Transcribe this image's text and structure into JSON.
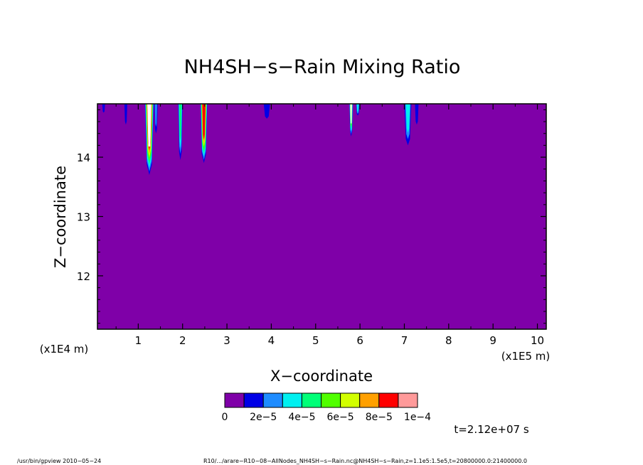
{
  "chart_data": {
    "type": "heatmap",
    "title": "NH4SH−s−Rain Mixing Ratio",
    "xlabel": "X−coordinate",
    "ylabel": "Z−coordinate",
    "x_scale_note": "(x1E5 m)",
    "y_scale_note": "(x1E4 m)",
    "xlim": [
      0.08,
      10.2
    ],
    "ylim": [
      11.1,
      14.9
    ],
    "x_ticks": [
      1,
      2,
      3,
      4,
      5,
      6,
      7,
      8,
      9,
      10
    ],
    "x_tick_labels": [
      "1",
      "2",
      "3",
      "4",
      "5",
      "6",
      "7",
      "8",
      "9",
      "10"
    ],
    "y_ticks": [
      12,
      13,
      14
    ],
    "y_tick_labels": [
      "12",
      "13",
      "14"
    ],
    "background_value": 0,
    "colorbar": {
      "colors": [
        "#7f00a8",
        "#0000e6",
        "#1e8cff",
        "#00f0f0",
        "#00ff78",
        "#50ff00",
        "#d2ff00",
        "#ffa000",
        "#ff0000",
        "#ff9a9a"
      ],
      "labels": [
        "0",
        "2e−5",
        "4e−5",
        "6e−5",
        "8e−5",
        "1e−4"
      ],
      "min": 0,
      "max": 0.0001
    },
    "features": [
      {
        "x": 0.22,
        "z_bottom": 14.75,
        "half_width": 0.02,
        "level": 1
      },
      {
        "x": 0.72,
        "z_bottom": 14.55,
        "half_width": 0.01,
        "level": 1
      },
      {
        "x": 1.25,
        "z_bottom": 13.7,
        "half_width": 0.1,
        "level": 9,
        "white_core": true
      },
      {
        "x": 1.4,
        "z_bottom": 14.4,
        "half_width": 0.04,
        "level": 2
      },
      {
        "x": 1.95,
        "z_bottom": 13.95,
        "half_width": 0.05,
        "level": 4
      },
      {
        "x": 2.48,
        "z_bottom": 13.9,
        "half_width": 0.08,
        "level": 8
      },
      {
        "x": 3.9,
        "z_bottom": 14.65,
        "half_width": 0.07,
        "level": 1
      },
      {
        "x": 5.8,
        "z_bottom": 14.35,
        "half_width": 0.04,
        "level": 6,
        "white_core": true
      },
      {
        "x": 5.95,
        "z_bottom": 14.7,
        "half_width": 0.04,
        "level": 3
      },
      {
        "x": 7.08,
        "z_bottom": 14.2,
        "half_width": 0.08,
        "level": 3
      },
      {
        "x": 7.28,
        "z_bottom": 14.55,
        "half_width": 0.04,
        "level": 1
      }
    ]
  },
  "annotations": {
    "time": "t=2.12e+07 s",
    "footer_left": "/usr/bin/gpview   2010−05−24",
    "footer_right": "R10/.../arare−R10−08−AllNodes_NH4SH−s−Rain.nc@NH4SH−s−Rain,z=1.1e5:1.5e5,t=20800000.0:21400000.0"
  }
}
